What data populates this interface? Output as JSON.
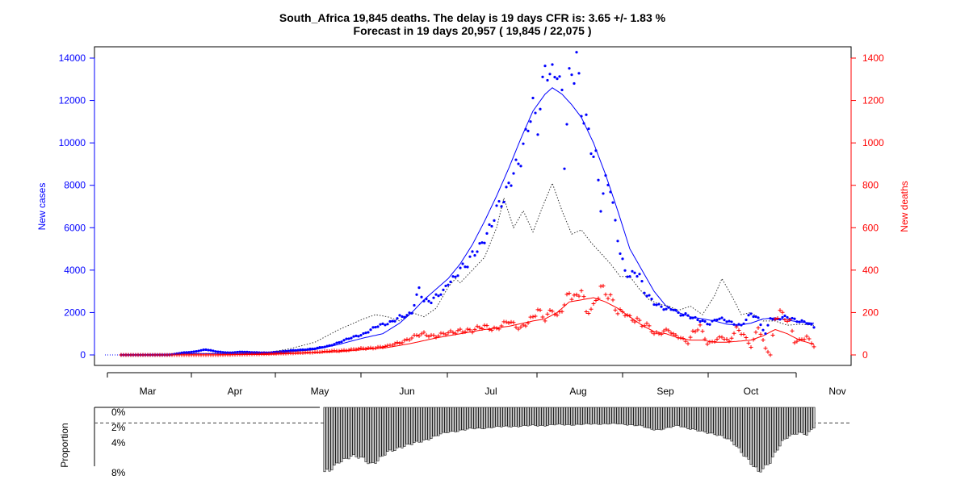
{
  "chart_data": [
    {
      "type": "scatter",
      "title": "South_Africa 19,845 deaths. The delay is 19 days CFR is: 3.65 +/- 1.83 %",
      "subtitle": "Forecast in 19 days 20,957 ( 19,845 / 22,075 )",
      "ylabel_left": "New cases",
      "ylabel_right": "New deaths",
      "ylim_left": [
        0,
        14000
      ],
      "ylim_right": [
        0,
        1400
      ],
      "yticks_left": [
        "0",
        "2000",
        "4000",
        "6000",
        "8000",
        "10000",
        "12000",
        "14000"
      ],
      "yticks_right": [
        "0",
        "200",
        "400",
        "600",
        "800",
        "1000",
        "1200",
        "1400"
      ],
      "x_tick_labels": [
        "Mar",
        "Apr",
        "May",
        "Jun",
        "Jul",
        "Aug",
        "Sep",
        "Oct",
        "Nov"
      ],
      "x_range_days": [
        0,
        275
      ],
      "start_date": "2020-02-05",
      "colors": {
        "cases": "#0000ff",
        "deaths": "#ff0000",
        "forecast": "#333333",
        "frame": "#000000"
      },
      "new_cases_keypoints": [
        [
          0,
          0
        ],
        [
          20,
          0
        ],
        [
          25,
          100
        ],
        [
          30,
          150
        ],
        [
          35,
          250
        ],
        [
          40,
          150
        ],
        [
          45,
          100
        ],
        [
          50,
          150
        ],
        [
          55,
          120
        ],
        [
          60,
          100
        ],
        [
          65,
          150
        ],
        [
          70,
          200
        ],
        [
          75,
          250
        ],
        [
          80,
          300
        ],
        [
          85,
          400
        ],
        [
          90,
          600
        ],
        [
          95,
          800
        ],
        [
          100,
          1000
        ],
        [
          105,
          1300
        ],
        [
          110,
          1500
        ],
        [
          115,
          1800
        ],
        [
          118,
          1800
        ],
        [
          120,
          2000
        ],
        [
          123,
          3200
        ],
        [
          125,
          2600
        ],
        [
          128,
          2500
        ],
        [
          130,
          2700
        ],
        [
          133,
          3000
        ],
        [
          135,
          3500
        ],
        [
          138,
          3700
        ],
        [
          140,
          4000
        ],
        [
          143,
          4200
        ],
        [
          145,
          4800
        ],
        [
          148,
          5200
        ],
        [
          150,
          5500
        ],
        [
          153,
          6000
        ],
        [
          155,
          6800
        ],
        [
          158,
          7500
        ],
        [
          160,
          8200
        ],
        [
          163,
          8800
        ],
        [
          165,
          9000
        ],
        [
          168,
          10800
        ],
        [
          170,
          12000
        ],
        [
          172,
          11000
        ],
        [
          175,
          13500
        ],
        [
          177,
          12800
        ],
        [
          180,
          13400
        ],
        [
          182,
          12500
        ],
        [
          183,
          9300
        ],
        [
          185,
          13200
        ],
        [
          187,
          13100
        ],
        [
          188,
          13900
        ],
        [
          190,
          11200
        ],
        [
          192,
          11100
        ],
        [
          194,
          10000
        ],
        [
          196,
          9500
        ],
        [
          198,
          7000
        ],
        [
          200,
          8000
        ],
        [
          202,
          7800
        ],
        [
          204,
          6200
        ],
        [
          206,
          5000
        ],
        [
          208,
          4000
        ],
        [
          210,
          3700
        ],
        [
          212,
          3800
        ],
        [
          214,
          3700
        ],
        [
          216,
          3000
        ],
        [
          218,
          2800
        ],
        [
          220,
          2500
        ],
        [
          222,
          2300
        ],
        [
          225,
          2100
        ],
        [
          228,
          2200
        ],
        [
          230,
          2000
        ],
        [
          233,
          1900
        ],
        [
          236,
          1700
        ],
        [
          240,
          1600
        ],
        [
          243,
          1500
        ],
        [
          246,
          1700
        ],
        [
          250,
          1600
        ],
        [
          253,
          1500
        ],
        [
          256,
          1400
        ],
        [
          260,
          1900
        ],
        [
          263,
          1700
        ],
        [
          266,
          1000
        ],
        [
          268,
          1800
        ],
        [
          270,
          1600
        ],
        [
          272,
          1700
        ],
        [
          275,
          1800
        ],
        [
          278,
          1700
        ],
        [
          280,
          1600
        ],
        [
          283,
          1500
        ],
        [
          286,
          1300
        ]
      ],
      "cases_smooth_keypoints": [
        [
          0,
          0
        ],
        [
          30,
          60
        ],
        [
          50,
          60
        ],
        [
          65,
          80
        ],
        [
          70,
          150
        ],
        [
          80,
          250
        ],
        [
          90,
          500
        ],
        [
          100,
          800
        ],
        [
          108,
          1000
        ],
        [
          115,
          1500
        ],
        [
          120,
          2000
        ],
        [
          125,
          2600
        ],
        [
          130,
          3100
        ],
        [
          135,
          3600
        ],
        [
          140,
          4300
        ],
        [
          145,
          5200
        ],
        [
          150,
          6300
        ],
        [
          155,
          7500
        ],
        [
          160,
          8800
        ],
        [
          165,
          10200
        ],
        [
          170,
          11500
        ],
        [
          175,
          12300
        ],
        [
          178,
          12600
        ],
        [
          182,
          12300
        ],
        [
          186,
          11800
        ],
        [
          190,
          11200
        ],
        [
          195,
          10000
        ],
        [
          200,
          8500
        ],
        [
          205,
          6800
        ],
        [
          210,
          5000
        ],
        [
          215,
          4000
        ],
        [
          220,
          3000
        ],
        [
          225,
          2300
        ],
        [
          230,
          2000
        ],
        [
          235,
          1800
        ],
        [
          240,
          1700
        ],
        [
          245,
          1600
        ],
        [
          250,
          1450
        ],
        [
          255,
          1400
        ],
        [
          260,
          1500
        ],
        [
          265,
          1700
        ],
        [
          270,
          1750
        ],
        [
          275,
          1650
        ],
        [
          280,
          1550
        ],
        [
          286,
          1500
        ]
      ],
      "forecast_keypoints": [
        [
          0,
          0
        ],
        [
          30,
          50
        ],
        [
          50,
          80
        ],
        [
          60,
          100
        ],
        [
          70,
          300
        ],
        [
          80,
          600
        ],
        [
          90,
          1200
        ],
        [
          100,
          1700
        ],
        [
          105,
          1900
        ],
        [
          110,
          1800
        ],
        [
          115,
          1600
        ],
        [
          120,
          2000
        ],
        [
          125,
          1800
        ],
        [
          130,
          2200
        ],
        [
          135,
          3200
        ],
        [
          138,
          3600
        ],
        [
          140,
          3400
        ],
        [
          145,
          4000
        ],
        [
          150,
          4600
        ],
        [
          155,
          6000
        ],
        [
          158,
          7400
        ],
        [
          162,
          6000
        ],
        [
          166,
          6800
        ],
        [
          170,
          5800
        ],
        [
          174,
          7000
        ],
        [
          178,
          8100
        ],
        [
          182,
          6800
        ],
        [
          186,
          5700
        ],
        [
          190,
          5900
        ],
        [
          194,
          5300
        ],
        [
          198,
          4800
        ],
        [
          202,
          4300
        ],
        [
          206,
          3700
        ],
        [
          210,
          3700
        ],
        [
          214,
          3100
        ],
        [
          218,
          2600
        ],
        [
          222,
          2400
        ],
        [
          226,
          2300
        ],
        [
          230,
          2100
        ],
        [
          235,
          2300
        ],
        [
          240,
          1900
        ],
        [
          245,
          2800
        ],
        [
          248,
          3600
        ],
        [
          252,
          2800
        ],
        [
          256,
          1900
        ],
        [
          260,
          2000
        ],
        [
          265,
          1600
        ],
        [
          270,
          1600
        ],
        [
          275,
          1400
        ],
        [
          280,
          1450
        ],
        [
          286,
          1400
        ]
      ],
      "new_deaths_keypoints": [
        [
          0,
          0
        ],
        [
          40,
          0
        ],
        [
          60,
          5
        ],
        [
          75,
          10
        ],
        [
          90,
          20
        ],
        [
          100,
          30
        ],
        [
          110,
          40
        ],
        [
          115,
          60
        ],
        [
          120,
          80
        ],
        [
          125,
          100
        ],
        [
          130,
          90
        ],
        [
          135,
          100
        ],
        [
          140,
          120
        ],
        [
          145,
          110
        ],
        [
          150,
          140
        ],
        [
          155,
          120
        ],
        [
          158,
          140
        ],
        [
          160,
          160
        ],
        [
          165,
          130
        ],
        [
          168,
          150
        ],
        [
          170,
          170
        ],
        [
          172,
          210
        ],
        [
          175,
          180
        ],
        [
          178,
          220
        ],
        [
          180,
          170
        ],
        [
          183,
          230
        ],
        [
          185,
          300
        ],
        [
          188,
          280
        ],
        [
          190,
          320
        ],
        [
          192,
          190
        ],
        [
          195,
          220
        ],
        [
          198,
          330
        ],
        [
          200,
          310
        ],
        [
          202,
          270
        ],
        [
          205,
          190
        ],
        [
          208,
          200
        ],
        [
          210,
          180
        ],
        [
          213,
          170
        ],
        [
          215,
          140
        ],
        [
          218,
          130
        ],
        [
          220,
          100
        ],
        [
          223,
          110
        ],
        [
          226,
          120
        ],
        [
          228,
          90
        ],
        [
          231,
          80
        ],
        [
          234,
          60
        ],
        [
          236,
          110
        ],
        [
          239,
          130
        ],
        [
          242,
          50
        ],
        [
          245,
          70
        ],
        [
          248,
          90
        ],
        [
          251,
          60
        ],
        [
          254,
          120
        ],
        [
          257,
          100
        ],
        [
          260,
          40
        ],
        [
          263,
          130
        ],
        [
          266,
          30
        ],
        [
          268,
          0
        ],
        [
          270,
          180
        ],
        [
          272,
          210
        ],
        [
          274,
          170
        ],
        [
          276,
          150
        ],
        [
          278,
          60
        ],
        [
          280,
          70
        ],
        [
          283,
          90
        ],
        [
          286,
          40
        ]
      ],
      "deaths_smooth_keypoints": [
        [
          0,
          0
        ],
        [
          60,
          2
        ],
        [
          75,
          8
        ],
        [
          90,
          15
        ],
        [
          100,
          25
        ],
        [
          110,
          35
        ],
        [
          120,
          55
        ],
        [
          130,
          80
        ],
        [
          140,
          100
        ],
        [
          150,
          120
        ],
        [
          160,
          135
        ],
        [
          170,
          160
        ],
        [
          175,
          170
        ],
        [
          180,
          200
        ],
        [
          185,
          250
        ],
        [
          190,
          260
        ],
        [
          195,
          270
        ],
        [
          200,
          250
        ],
        [
          205,
          220
        ],
        [
          210,
          180
        ],
        [
          215,
          140
        ],
        [
          220,
          110
        ],
        [
          225,
          100
        ],
        [
          230,
          80
        ],
        [
          235,
          70
        ],
        [
          240,
          70
        ],
        [
          245,
          60
        ],
        [
          250,
          60
        ],
        [
          255,
          65
        ],
        [
          260,
          70
        ],
        [
          265,
          90
        ],
        [
          270,
          120
        ],
        [
          275,
          100
        ],
        [
          280,
          70
        ],
        [
          286,
          50
        ]
      ],
      "proportion_panel": {
        "ylabel": "Proportion",
        "yticks": [
          "0%",
          "2%",
          "4%",
          "8%"
        ],
        "reference_level_pct": 1.9,
        "start_day": 84,
        "keypoints": [
          [
            84,
            8
          ],
          [
            86,
            7.8
          ],
          [
            90,
            6.5
          ],
          [
            95,
            6.0
          ],
          [
            100,
            6.2
          ],
          [
            103,
            6.8
          ],
          [
            106,
            6.5
          ],
          [
            110,
            5.5
          ],
          [
            115,
            4.8
          ],
          [
            120,
            4.5
          ],
          [
            125,
            4.0
          ],
          [
            130,
            3.5
          ],
          [
            135,
            3.0
          ],
          [
            140,
            2.8
          ],
          [
            145,
            2.6
          ],
          [
            150,
            2.5
          ],
          [
            155,
            2.4
          ],
          [
            160,
            2.3
          ],
          [
            165,
            2.3
          ],
          [
            170,
            2.2
          ],
          [
            175,
            2.2
          ],
          [
            180,
            2.1
          ],
          [
            185,
            2.1
          ],
          [
            190,
            2.1
          ],
          [
            195,
            2.0
          ],
          [
            200,
            2.0
          ],
          [
            205,
            2.0
          ],
          [
            210,
            2.1
          ],
          [
            215,
            2.3
          ],
          [
            218,
            2.6
          ],
          [
            222,
            2.7
          ],
          [
            226,
            2.5
          ],
          [
            230,
            2.2
          ],
          [
            235,
            2.6
          ],
          [
            240,
            3.0
          ],
          [
            245,
            3.2
          ],
          [
            248,
            3.5
          ],
          [
            252,
            4.2
          ],
          [
            255,
            5.0
          ],
          [
            258,
            6.0
          ],
          [
            261,
            7.2
          ],
          [
            263,
            8.0
          ],
          [
            265,
            7.5
          ],
          [
            268,
            6.5
          ],
          [
            270,
            5.5
          ],
          [
            273,
            4.2
          ],
          [
            276,
            3.5
          ],
          [
            280,
            3.0
          ],
          [
            283,
            3.3
          ],
          [
            286,
            2.5
          ]
        ]
      }
    }
  ]
}
